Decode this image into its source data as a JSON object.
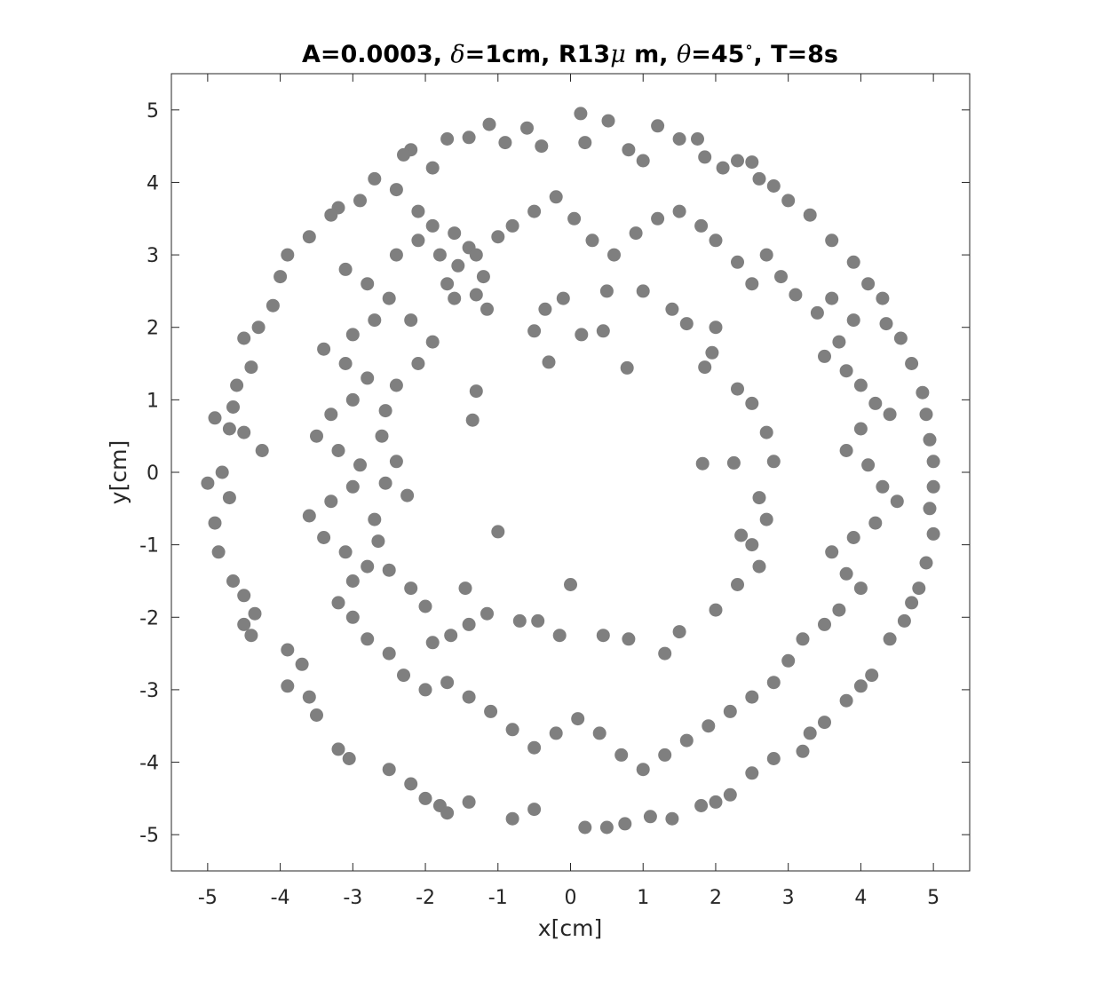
{
  "chart_data": {
    "type": "scatter",
    "title": {
      "parts": [
        {
          "text": "A=0.0003, "
        },
        {
          "text": "δ",
          "italic": true
        },
        {
          "text": "=1cm, R13"
        },
        {
          "text": "μ",
          "italic": true
        },
        {
          "text": " m, "
        },
        {
          "text": "θ",
          "italic": true
        },
        {
          "text": "=45"
        },
        {
          "text": "∘",
          "superscript": true
        },
        {
          "text": ", T=8s"
        }
      ]
    },
    "xlabel": "x[cm]",
    "ylabel": "y[cm]",
    "xlim": [
      -5.5,
      5.5
    ],
    "ylim": [
      -5.5,
      5.5
    ],
    "xticks": [
      -5,
      -4,
      -3,
      -2,
      -1,
      0,
      1,
      2,
      3,
      4,
      5
    ],
    "yticks": [
      -5,
      -4,
      -3,
      -2,
      -1,
      0,
      1,
      2,
      3,
      4,
      5
    ],
    "xtick_labels": [
      "-5",
      "-4",
      "-3",
      "-2",
      "-1",
      "0",
      "1",
      "2",
      "3",
      "4",
      "5"
    ],
    "ytick_labels": [
      "-5",
      "-4",
      "-3",
      "-2",
      "-1",
      "0",
      "1",
      "2",
      "3",
      "4",
      "5"
    ],
    "grid": false,
    "marker_color": "#7f7f7f",
    "series": [
      {
        "points": [
          [
            0.14,
            4.95
          ],
          [
            0.52,
            4.85
          ],
          [
            -1.12,
            4.8
          ],
          [
            -0.6,
            4.75
          ],
          [
            1.2,
            4.78
          ],
          [
            -1.7,
            4.6
          ],
          [
            -1.4,
            4.62
          ],
          [
            1.5,
            4.6
          ],
          [
            1.75,
            4.6
          ],
          [
            -2.2,
            4.45
          ],
          [
            -2.3,
            4.38
          ],
          [
            2.3,
            4.3
          ],
          [
            2.5,
            4.28
          ],
          [
            -0.9,
            4.55
          ],
          [
            -0.4,
            4.5
          ],
          [
            0.2,
            4.55
          ],
          [
            0.8,
            4.45
          ],
          [
            1.0,
            4.3
          ],
          [
            -1.9,
            4.2
          ],
          [
            -2.7,
            4.05
          ],
          [
            -2.9,
            3.75
          ],
          [
            -3.2,
            3.65
          ],
          [
            -3.3,
            3.55
          ],
          [
            -3.6,
            3.25
          ],
          [
            -3.9,
            3.0
          ],
          [
            -4.0,
            2.7
          ],
          [
            -4.1,
            2.3
          ],
          [
            -4.3,
            2.0
          ],
          [
            -4.5,
            1.85
          ],
          [
            -4.4,
            1.45
          ],
          [
            -4.6,
            1.2
          ],
          [
            -4.65,
            0.9
          ],
          [
            -4.9,
            0.75
          ],
          [
            -4.7,
            0.6
          ],
          [
            -4.5,
            0.55
          ],
          [
            -4.25,
            0.3
          ],
          [
            -4.8,
            0.0
          ],
          [
            -5.0,
            -0.15
          ],
          [
            -4.7,
            -0.35
          ],
          [
            -4.9,
            -0.7
          ],
          [
            -4.85,
            -1.1
          ],
          [
            -4.65,
            -1.5
          ],
          [
            -4.5,
            -1.7
          ],
          [
            -4.35,
            -1.95
          ],
          [
            -4.5,
            -2.1
          ],
          [
            -4.4,
            -2.25
          ],
          [
            -3.9,
            -2.45
          ],
          [
            -3.7,
            -2.65
          ],
          [
            -3.9,
            -2.95
          ],
          [
            -3.6,
            -3.1
          ],
          [
            -3.5,
            -3.35
          ],
          [
            -3.2,
            -3.82
          ],
          [
            -3.05,
            -3.95
          ],
          [
            -2.5,
            -4.1
          ],
          [
            -2.2,
            -4.3
          ],
          [
            -2.0,
            -4.5
          ],
          [
            -1.8,
            -4.6
          ],
          [
            -1.7,
            -4.7
          ],
          [
            -1.4,
            -4.55
          ],
          [
            -0.8,
            -4.78
          ],
          [
            -0.5,
            -4.65
          ],
          [
            0.2,
            -4.9
          ],
          [
            0.5,
            -4.9
          ],
          [
            0.75,
            -4.85
          ],
          [
            1.1,
            -4.75
          ],
          [
            1.4,
            -4.78
          ],
          [
            1.8,
            -4.6
          ],
          [
            2.0,
            -4.55
          ],
          [
            2.2,
            -4.45
          ],
          [
            2.5,
            -4.15
          ],
          [
            2.8,
            -3.95
          ],
          [
            3.2,
            -3.85
          ],
          [
            3.3,
            -3.6
          ],
          [
            3.5,
            -3.45
          ],
          [
            3.8,
            -3.15
          ],
          [
            4.0,
            -2.95
          ],
          [
            4.15,
            -2.8
          ],
          [
            4.4,
            -2.3
          ],
          [
            4.6,
            -2.05
          ],
          [
            4.7,
            -1.8
          ],
          [
            4.8,
            -1.6
          ],
          [
            4.9,
            -1.25
          ],
          [
            5.0,
            -0.85
          ],
          [
            4.95,
            -0.5
          ],
          [
            5.0,
            -0.2
          ],
          [
            5.0,
            0.15
          ],
          [
            4.95,
            0.45
          ],
          [
            4.9,
            0.8
          ],
          [
            4.85,
            1.1
          ],
          [
            4.7,
            1.5
          ],
          [
            4.55,
            1.85
          ],
          [
            4.35,
            2.05
          ],
          [
            4.3,
            2.4
          ],
          [
            4.1,
            2.6
          ],
          [
            3.9,
            2.9
          ],
          [
            3.6,
            3.2
          ],
          [
            3.3,
            3.55
          ],
          [
            3.0,
            3.75
          ],
          [
            2.8,
            3.95
          ],
          [
            2.6,
            4.05
          ],
          [
            2.1,
            4.2
          ],
          [
            1.85,
            4.35
          ],
          [
            -2.4,
            3.9
          ],
          [
            -2.1,
            3.6
          ],
          [
            -1.9,
            3.4
          ],
          [
            -1.6,
            3.3
          ],
          [
            -1.4,
            3.1
          ],
          [
            -1.3,
            3.0
          ],
          [
            -1.55,
            2.85
          ],
          [
            -1.7,
            2.6
          ],
          [
            -1.2,
            2.7
          ],
          [
            -1.0,
            3.25
          ],
          [
            -0.8,
            3.4
          ],
          [
            -0.5,
            3.6
          ],
          [
            -0.2,
            3.8
          ],
          [
            0.05,
            3.5
          ],
          [
            0.3,
            3.2
          ],
          [
            0.6,
            3.0
          ],
          [
            0.9,
            3.3
          ],
          [
            1.2,
            3.5
          ],
          [
            1.5,
            3.6
          ],
          [
            1.8,
            3.4
          ],
          [
            2.0,
            3.2
          ],
          [
            2.3,
            2.9
          ],
          [
            2.5,
            2.6
          ],
          [
            2.7,
            3.0
          ],
          [
            2.9,
            2.7
          ],
          [
            3.1,
            2.45
          ],
          [
            3.4,
            2.2
          ],
          [
            3.6,
            2.4
          ],
          [
            3.9,
            2.1
          ],
          [
            3.7,
            1.8
          ],
          [
            3.5,
            1.6
          ],
          [
            3.8,
            1.4
          ],
          [
            4.0,
            1.2
          ],
          [
            4.2,
            0.95
          ],
          [
            4.4,
            0.8
          ],
          [
            4.0,
            0.6
          ],
          [
            3.8,
            0.3
          ],
          [
            4.1,
            0.1
          ],
          [
            4.3,
            -0.2
          ],
          [
            4.5,
            -0.4
          ],
          [
            4.2,
            -0.7
          ],
          [
            3.9,
            -0.9
          ],
          [
            3.6,
            -1.1
          ],
          [
            3.8,
            -1.4
          ],
          [
            4.0,
            -1.6
          ],
          [
            3.7,
            -1.9
          ],
          [
            3.5,
            -2.1
          ],
          [
            3.2,
            -2.3
          ],
          [
            3.0,
            -2.6
          ],
          [
            2.8,
            -2.9
          ],
          [
            2.5,
            -3.1
          ],
          [
            2.2,
            -3.3
          ],
          [
            1.9,
            -3.5
          ],
          [
            1.6,
            -3.7
          ],
          [
            1.3,
            -3.9
          ],
          [
            1.0,
            -4.1
          ],
          [
            0.7,
            -3.9
          ],
          [
            0.4,
            -3.6
          ],
          [
            0.1,
            -3.4
          ],
          [
            -0.2,
            -3.6
          ],
          [
            -0.5,
            -3.8
          ],
          [
            -0.8,
            -3.55
          ],
          [
            -1.1,
            -3.3
          ],
          [
            -1.4,
            -3.1
          ],
          [
            -1.7,
            -2.9
          ],
          [
            -2.0,
            -3.0
          ],
          [
            -2.3,
            -2.8
          ],
          [
            -2.5,
            -2.5
          ],
          [
            -2.8,
            -2.3
          ],
          [
            -3.0,
            -2.0
          ],
          [
            -3.2,
            -1.8
          ],
          [
            -3.0,
            -1.5
          ],
          [
            -2.8,
            -1.3
          ],
          [
            -3.1,
            -1.1
          ],
          [
            -3.4,
            -0.9
          ],
          [
            -3.6,
            -0.6
          ],
          [
            -3.3,
            -0.4
          ],
          [
            -3.0,
            -0.2
          ],
          [
            -2.9,
            0.1
          ],
          [
            -3.2,
            0.3
          ],
          [
            -3.5,
            0.5
          ],
          [
            -3.3,
            0.8
          ],
          [
            -3.0,
            1.0
          ],
          [
            -2.8,
            1.3
          ],
          [
            -3.1,
            1.5
          ],
          [
            -3.4,
            1.7
          ],
          [
            -3.0,
            1.9
          ],
          [
            -2.7,
            2.1
          ],
          [
            -2.5,
            2.4
          ],
          [
            -2.8,
            2.6
          ],
          [
            -3.1,
            2.8
          ],
          [
            -2.4,
            3.0
          ],
          [
            -2.1,
            3.2
          ],
          [
            -1.8,
            3.0
          ],
          [
            -0.3,
            1.52
          ],
          [
            0.78,
            1.44
          ],
          [
            -1.3,
            1.12
          ],
          [
            -1.35,
            0.72
          ],
          [
            -2.25,
            -0.32
          ],
          [
            -1.0,
            -0.82
          ],
          [
            1.82,
            0.12
          ],
          [
            2.25,
            0.13
          ],
          [
            2.35,
            -0.87
          ],
          [
            0.0,
            -1.55
          ],
          [
            -1.45,
            -1.6
          ],
          [
            -1.6,
            2.4
          ],
          [
            -1.15,
            2.25
          ],
          [
            -0.35,
            2.25
          ],
          [
            0.15,
            1.9
          ],
          [
            0.45,
            1.95
          ],
          [
            -0.5,
            1.95
          ],
          [
            1.95,
            1.65
          ],
          [
            1.85,
            1.45
          ],
          [
            2.3,
            1.15
          ],
          [
            2.5,
            0.95
          ],
          [
            2.7,
            0.55
          ],
          [
            2.8,
            0.15
          ],
          [
            2.6,
            -0.35
          ],
          [
            2.7,
            -0.65
          ],
          [
            2.5,
            -1.0
          ],
          [
            2.6,
            -1.3
          ],
          [
            2.3,
            -1.55
          ],
          [
            2.0,
            -1.9
          ],
          [
            1.5,
            -2.2
          ],
          [
            1.3,
            -2.5
          ],
          [
            0.8,
            -2.3
          ],
          [
            0.45,
            -2.25
          ],
          [
            -0.15,
            -2.25
          ],
          [
            -0.45,
            -2.05
          ],
          [
            -0.7,
            -2.05
          ],
          [
            -1.15,
            -1.95
          ],
          [
            -1.4,
            -2.1
          ],
          [
            -1.65,
            -2.25
          ],
          [
            -1.9,
            -2.35
          ],
          [
            -2.0,
            -1.85
          ],
          [
            -2.2,
            -1.6
          ],
          [
            -2.5,
            -1.35
          ],
          [
            -2.65,
            -0.95
          ],
          [
            -2.7,
            -0.65
          ],
          [
            -2.55,
            -0.15
          ],
          [
            -2.4,
            0.15
          ],
          [
            -2.6,
            0.5
          ],
          [
            -2.55,
            0.85
          ],
          [
            -2.4,
            1.2
          ],
          [
            -2.1,
            1.5
          ],
          [
            -1.9,
            1.8
          ],
          [
            -2.2,
            2.1
          ],
          [
            -1.3,
            2.45
          ],
          [
            -0.1,
            2.4
          ],
          [
            0.5,
            2.5
          ],
          [
            1.0,
            2.5
          ],
          [
            1.4,
            2.25
          ],
          [
            1.6,
            2.05
          ],
          [
            2.0,
            2.0
          ]
        ]
      }
    ]
  }
}
